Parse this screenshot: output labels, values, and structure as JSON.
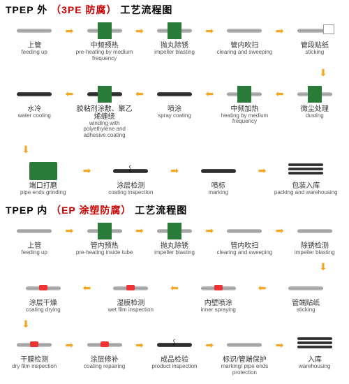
{
  "section1": {
    "title_prefix": "TPEP 外",
    "title_sub": "（3PE 防腐）",
    "title_suffix": "工艺流程图",
    "rows": [
      {
        "dir": "right",
        "steps": [
          {
            "cn": "上管",
            "en": "feeding up",
            "type": "pipe"
          },
          {
            "cn": "中频预热",
            "en": "pre-heating by medium frequency",
            "type": "green"
          },
          {
            "cn": "抛丸除锈",
            "en": "impeller blasting",
            "type": "green"
          },
          {
            "cn": "管内吹扫",
            "en": "clearing and sweeping",
            "type": "pipe"
          },
          {
            "cn": "管段贴纸",
            "en": "sticking",
            "type": "paper"
          }
        ]
      },
      {
        "dir": "left",
        "steps": [
          {
            "cn": "水冷",
            "en": "water cooling",
            "type": "dark"
          },
          {
            "cn": "胶粘剂涂敷、聚乙烯缠绕",
            "en": "winding with polyethylene and adhesive coating",
            "type": "green-dark"
          },
          {
            "cn": "喷涂",
            "en": "spray coating",
            "type": "dark"
          },
          {
            "cn": "中频加热",
            "en": "heating by medium frequency",
            "type": "green"
          },
          {
            "cn": "微尘处理",
            "en": "dusting",
            "type": "green"
          }
        ]
      },
      {
        "dir": "right",
        "steps": [
          {
            "cn": "端口打磨",
            "en": "pipe ends grinding",
            "type": "machine"
          },
          {
            "cn": "涂层检测",
            "en": "coating inspection",
            "type": "spring"
          },
          {
            "cn": "喷标",
            "en": "marking",
            "type": "dark"
          },
          {
            "cn": "包装入库",
            "en": "packing and warehousing",
            "type": "rack"
          }
        ]
      }
    ]
  },
  "section2": {
    "title_prefix": "TPEP 内",
    "title_sub": "（EP 涂塑防腐）",
    "title_suffix": "工艺流程图",
    "rows": [
      {
        "dir": "right",
        "steps": [
          {
            "cn": "上管",
            "en": "feeding up",
            "type": "pipe"
          },
          {
            "cn": "管内预热",
            "en": "pre-heating inside tube",
            "type": "green"
          },
          {
            "cn": "抛丸除锈",
            "en": "impeller blasting",
            "type": "green"
          },
          {
            "cn": "管内吹扫",
            "en": "clearing and sweeping",
            "type": "pipe"
          },
          {
            "cn": "除锈检测",
            "en": "impeller blasting",
            "type": "pipe"
          }
        ]
      },
      {
        "dir": "left",
        "steps": [
          {
            "cn": "涂层干燥",
            "en": "coating drying",
            "type": "red"
          },
          {
            "cn": "湿膜检测",
            "en": "wet film inspection",
            "type": "red"
          },
          {
            "cn": "内壁喷涂",
            "en": "inner spraying",
            "type": "red"
          },
          {
            "cn": "管端贴纸",
            "en": "sticking",
            "type": "pipe"
          }
        ]
      },
      {
        "dir": "right",
        "steps": [
          {
            "cn": "干膜检测",
            "en": "dry film inspection",
            "type": "red"
          },
          {
            "cn": "涂层修补",
            "en": "coating repairing",
            "type": "red"
          },
          {
            "cn": "成品检验",
            "en": "product inspection",
            "type": "spring"
          },
          {
            "cn": "标识/管端保护",
            "en": "marking/ pipe ends protection",
            "type": "pipe"
          },
          {
            "cn": "入库",
            "en": "warehousing",
            "type": "rack"
          }
        ]
      }
    ]
  },
  "colors": {
    "arrow": "#f5a623",
    "green": "#2a7a3a",
    "red": "#e33",
    "title_sub": "#c00"
  }
}
